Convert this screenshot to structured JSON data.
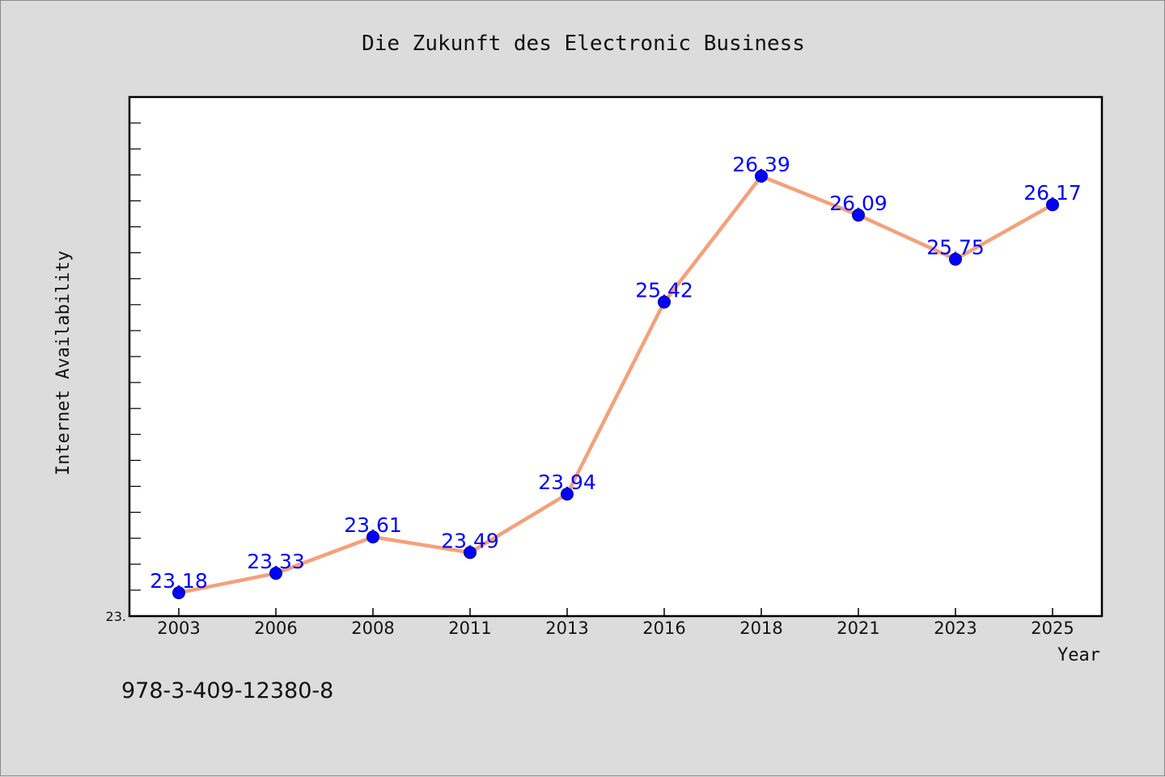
{
  "chart_data": {
    "type": "line",
    "title": "Die Zukunft des Electronic Business",
    "xlabel": "Year",
    "ylabel": "Internet Availability",
    "categories": [
      "2003",
      "2006",
      "2008",
      "2011",
      "2013",
      "2016",
      "2018",
      "2021",
      "2023",
      "2025"
    ],
    "series": [
      {
        "values": [
          23.18,
          23.33,
          23.61,
          23.49,
          23.94,
          25.42,
          26.39,
          26.09,
          25.75,
          26.17
        ]
      }
    ],
    "data_labels": [
      "23.18",
      "23.33",
      "23.61",
      "23.49",
      "23.94",
      "25.42",
      "26.39",
      "26.09",
      "25.75",
      "26.17"
    ],
    "ylim": [
      23.0,
      27.0
    ],
    "yticks_labeled": [
      "23."
    ],
    "grid": false,
    "line_color": "#f5a07a",
    "marker_color": "#0000ff",
    "label_color": "#0000ff"
  },
  "footer": {
    "isbn": "978-3-409-12380-8"
  }
}
